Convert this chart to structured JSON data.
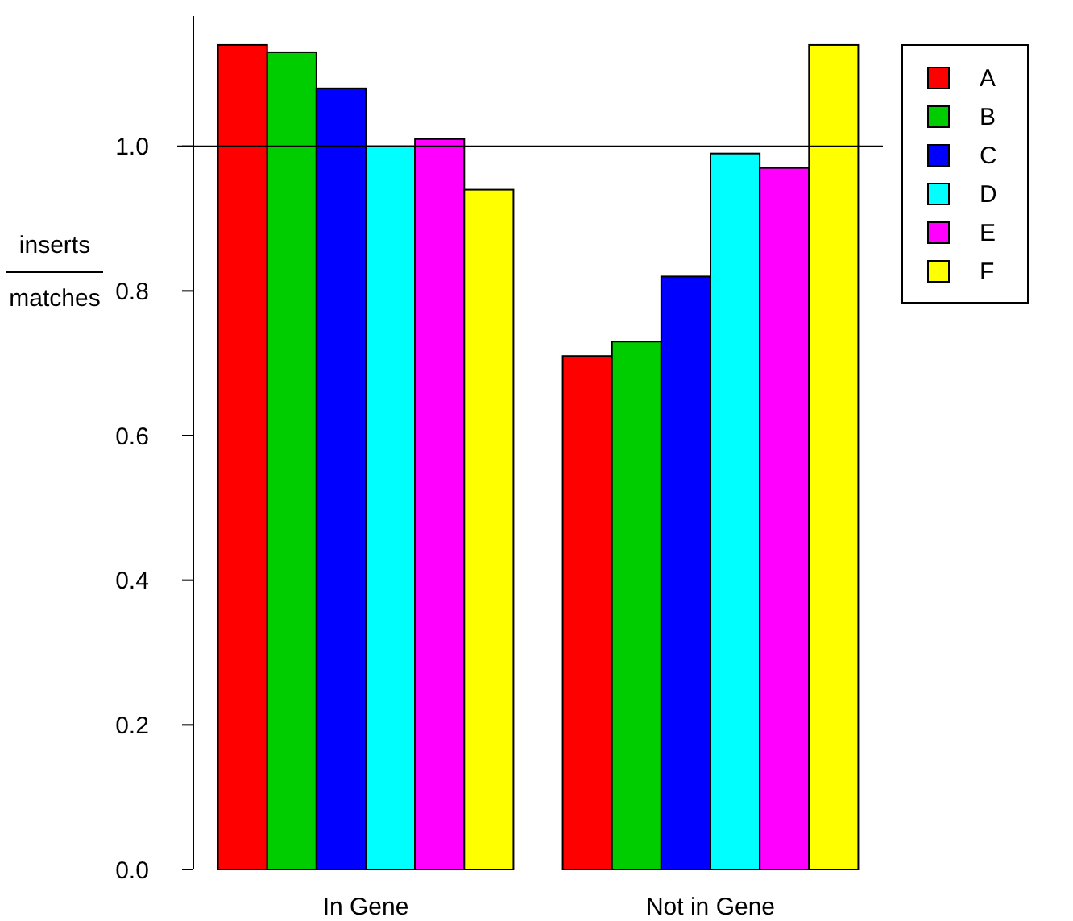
{
  "chart_data": {
    "type": "bar",
    "ylabel": "inserts\nmatches",
    "categories": [
      "In Gene",
      "Not in Gene"
    ],
    "series": [
      {
        "name": "A",
        "color": "#ff0000",
        "values": [
          1.14,
          0.71
        ]
      },
      {
        "name": "B",
        "color": "#00cd00",
        "values": [
          1.13,
          0.73
        ]
      },
      {
        "name": "C",
        "color": "#0000ff",
        "values": [
          1.08,
          0.82
        ]
      },
      {
        "name": "D",
        "color": "#00ffff",
        "values": [
          1.0,
          0.99
        ]
      },
      {
        "name": "E",
        "color": "#ff00ff",
        "values": [
          1.01,
          0.97
        ]
      },
      {
        "name": "F",
        "color": "#ffff00",
        "values": [
          0.94,
          1.14
        ]
      }
    ],
    "ylim": [
      0,
      1.18
    ],
    "yticks": [
      {
        "value": 0,
        "label": "0.0"
      },
      {
        "value": 0.2,
        "label": "0.2"
      },
      {
        "value": 0.4,
        "label": "0.4"
      },
      {
        "value": 0.6,
        "label": "0.6"
      },
      {
        "value": 0.8,
        "label": "0.8"
      },
      {
        "value": 1,
        "label": "1.0"
      }
    ],
    "ref_lines": [
      {
        "axis": "y",
        "value": 1,
        "color": "#000000"
      }
    ],
    "legend": "right"
  }
}
